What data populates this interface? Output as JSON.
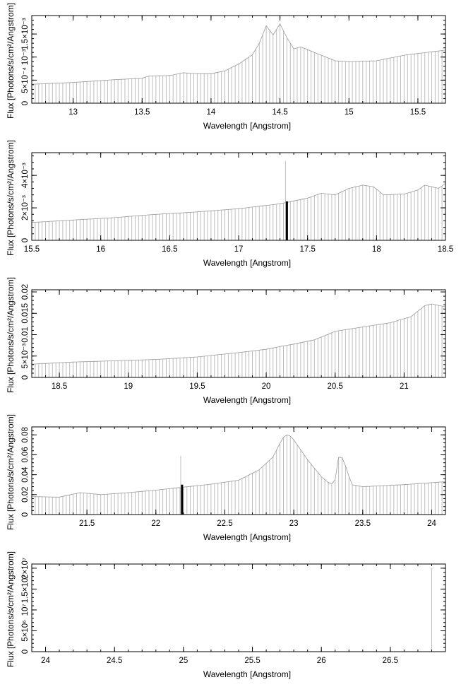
{
  "chart_data": [
    {
      "type": "bar",
      "title": "",
      "xlabel": "Wavelength [Angstrom]",
      "ylabel": "Flux [Photons/s/cm²/Angstrom]",
      "xlim": [
        12.7,
        15.7
      ],
      "ylim": [
        0,
        0.0019
      ],
      "xticks": [
        13,
        13.5,
        14,
        14.5,
        15,
        15.5
      ],
      "xtick_labels": [
        "13",
        "13.5",
        "14",
        "14.5",
        "15",
        "15.5"
      ],
      "yticks": [
        0,
        0.0005,
        0.001,
        0.0015
      ],
      "ytick_labels": [
        "0",
        "5×10⁻⁴",
        "10⁻³",
        "1.5×10⁻³"
      ],
      "bin_width": 0.025,
      "envelope": [
        [
          12.7,
          0.00041
        ],
        [
          13.0,
          0.00045
        ],
        [
          13.3,
          0.00051
        ],
        [
          13.5,
          0.00054
        ],
        [
          13.55,
          0.00059
        ],
        [
          13.7,
          0.0006
        ],
        [
          13.8,
          0.00066
        ],
        [
          13.9,
          0.00064
        ],
        [
          14.0,
          0.00064
        ],
        [
          14.1,
          0.0007
        ],
        [
          14.2,
          0.00085
        ],
        [
          14.3,
          0.00105
        ],
        [
          14.35,
          0.0013
        ],
        [
          14.4,
          0.00168
        ],
        [
          14.45,
          0.00148
        ],
        [
          14.5,
          0.00172
        ],
        [
          14.55,
          0.00142
        ],
        [
          14.6,
          0.00118
        ],
        [
          14.65,
          0.00122
        ],
        [
          14.75,
          0.0011
        ],
        [
          14.9,
          0.00092
        ],
        [
          15.0,
          0.0009
        ],
        [
          15.2,
          0.00092
        ],
        [
          15.4,
          0.00104
        ],
        [
          15.7,
          0.00115
        ]
      ],
      "spikes": []
    },
    {
      "type": "bar",
      "title": "",
      "xlabel": "Wavelength [Angstrom]",
      "ylabel": "Flux [Photons/s/cm²/Angstrom]",
      "xlim": [
        15.5,
        18.5
      ],
      "ylim": [
        0,
        0.0054
      ],
      "xticks": [
        15.5,
        16,
        16.5,
        17,
        17.5,
        18,
        18.5
      ],
      "xtick_labels": [
        "15.5",
        "16",
        "16.5",
        "17",
        "17.5",
        "18",
        "18.5"
      ],
      "yticks": [
        0,
        0.002,
        0.004
      ],
      "ytick_labels": [
        "0",
        "2×10⁻³",
        "4×10⁻³"
      ],
      "bin_width": 0.025,
      "envelope": [
        [
          15.5,
          0.0011
        ],
        [
          15.8,
          0.00125
        ],
        [
          16.1,
          0.0014
        ],
        [
          16.4,
          0.0016
        ],
        [
          16.7,
          0.00175
        ],
        [
          17.0,
          0.00195
        ],
        [
          17.3,
          0.00225
        ],
        [
          17.5,
          0.0026
        ],
        [
          17.6,
          0.0029
        ],
        [
          17.7,
          0.0028
        ],
        [
          17.8,
          0.0032
        ],
        [
          17.9,
          0.0034
        ],
        [
          17.98,
          0.0033
        ],
        [
          18.05,
          0.0028
        ],
        [
          18.2,
          0.00285
        ],
        [
          18.3,
          0.0031
        ],
        [
          18.35,
          0.0034
        ],
        [
          18.45,
          0.0032
        ],
        [
          18.5,
          0.0035
        ]
      ],
      "spikes": [
        {
          "x": 17.34,
          "value": 0.0049
        },
        {
          "x": 17.35,
          "value": 0.0024
        }
      ]
    },
    {
      "type": "bar",
      "title": "",
      "xlabel": "Wavelength [Angstrom]",
      "ylabel": "Flux [Photons/s/cm²/Angstrom]",
      "xlim": [
        18.3,
        21.3
      ],
      "ylim": [
        0,
        0.0205
      ],
      "xticks": [
        18.5,
        19,
        19.5,
        20,
        20.5,
        21
      ],
      "xtick_labels": [
        "18.5",
        "19",
        "19.5",
        "20",
        "20.5",
        "21"
      ],
      "yticks": [
        0,
        0.005,
        0.01,
        0.015,
        0.02
      ],
      "ytick_labels": [
        "0",
        "5×10⁻³",
        "0.01",
        "0.015",
        "0.02"
      ],
      "bin_width": 0.025,
      "envelope": [
        [
          18.3,
          0.0031
        ],
        [
          18.6,
          0.0036
        ],
        [
          18.9,
          0.0039
        ],
        [
          19.2,
          0.0042
        ],
        [
          19.5,
          0.0048
        ],
        [
          19.8,
          0.0058
        ],
        [
          20.0,
          0.0066
        ],
        [
          20.2,
          0.0078
        ],
        [
          20.35,
          0.0088
        ],
        [
          20.45,
          0.0101
        ],
        [
          20.5,
          0.0108
        ],
        [
          20.7,
          0.0118
        ],
        [
          20.9,
          0.0128
        ],
        [
          21.05,
          0.0142
        ],
        [
          21.15,
          0.0168
        ],
        [
          21.2,
          0.0172
        ],
        [
          21.3,
          0.0165
        ]
      ],
      "spikes": []
    },
    {
      "type": "bar",
      "title": "",
      "xlabel": "Wavelength [Angstrom]",
      "ylabel": "Flux [Photons/s/cm²/Angstrom]",
      "xlim": [
        21.1,
        24.1
      ],
      "ylim": [
        0,
        0.088
      ],
      "xticks": [
        21.5,
        22,
        22.5,
        23,
        23.5,
        24
      ],
      "xtick_labels": [
        "21.5",
        "22",
        "22.5",
        "23",
        "23.5",
        "24"
      ],
      "yticks": [
        0,
        0.02,
        0.04,
        0.06,
        0.08
      ],
      "ytick_labels": [
        "0",
        "0.02",
        "0.04",
        "0.06",
        "0.08"
      ],
      "bin_width": 0.025,
      "envelope": [
        [
          21.1,
          0.018
        ],
        [
          21.3,
          0.0175
        ],
        [
          21.45,
          0.022
        ],
        [
          21.6,
          0.02
        ],
        [
          21.8,
          0.022
        ],
        [
          22.0,
          0.0245
        ],
        [
          22.2,
          0.0275
        ],
        [
          22.4,
          0.0305
        ],
        [
          22.6,
          0.0345
        ],
        [
          22.75,
          0.045
        ],
        [
          22.85,
          0.058
        ],
        [
          22.92,
          0.077
        ],
        [
          22.96,
          0.081
        ],
        [
          23.0,
          0.075
        ],
        [
          23.1,
          0.055
        ],
        [
          23.2,
          0.038
        ],
        [
          23.27,
          0.03
        ],
        [
          23.3,
          0.035
        ],
        [
          23.33,
          0.062
        ],
        [
          23.36,
          0.055
        ],
        [
          23.42,
          0.03
        ],
        [
          23.5,
          0.028
        ],
        [
          23.8,
          0.03
        ],
        [
          24.1,
          0.033
        ]
      ],
      "spikes": [
        {
          "x": 22.18,
          "value": 0.059
        },
        {
          "x": 22.19,
          "value": 0.03
        }
      ]
    },
    {
      "type": "bar",
      "title": "",
      "xlabel": "Wavelength [Angstrom]",
      "ylabel": "Flux [Photons/s/cm²/Angstrom]",
      "xlim": [
        23.9,
        26.9
      ],
      "ylim": [
        0,
        21000000
      ],
      "xticks": [
        24,
        24.5,
        25,
        25.5,
        26,
        26.5
      ],
      "xtick_labels": [
        "24",
        "24.5",
        "25",
        "25.5",
        "26",
        "26.5"
      ],
      "yticks": [
        0,
        5000000,
        10000000,
        15000000,
        20000000
      ],
      "ytick_labels": [
        "0",
        "5×10⁶",
        "10⁷",
        "1.5×10⁷",
        "2×10⁷"
      ],
      "bin_width": 0.025,
      "envelope": [],
      "spikes": [
        {
          "x": 26.8,
          "value": 20000000
        }
      ]
    }
  ]
}
